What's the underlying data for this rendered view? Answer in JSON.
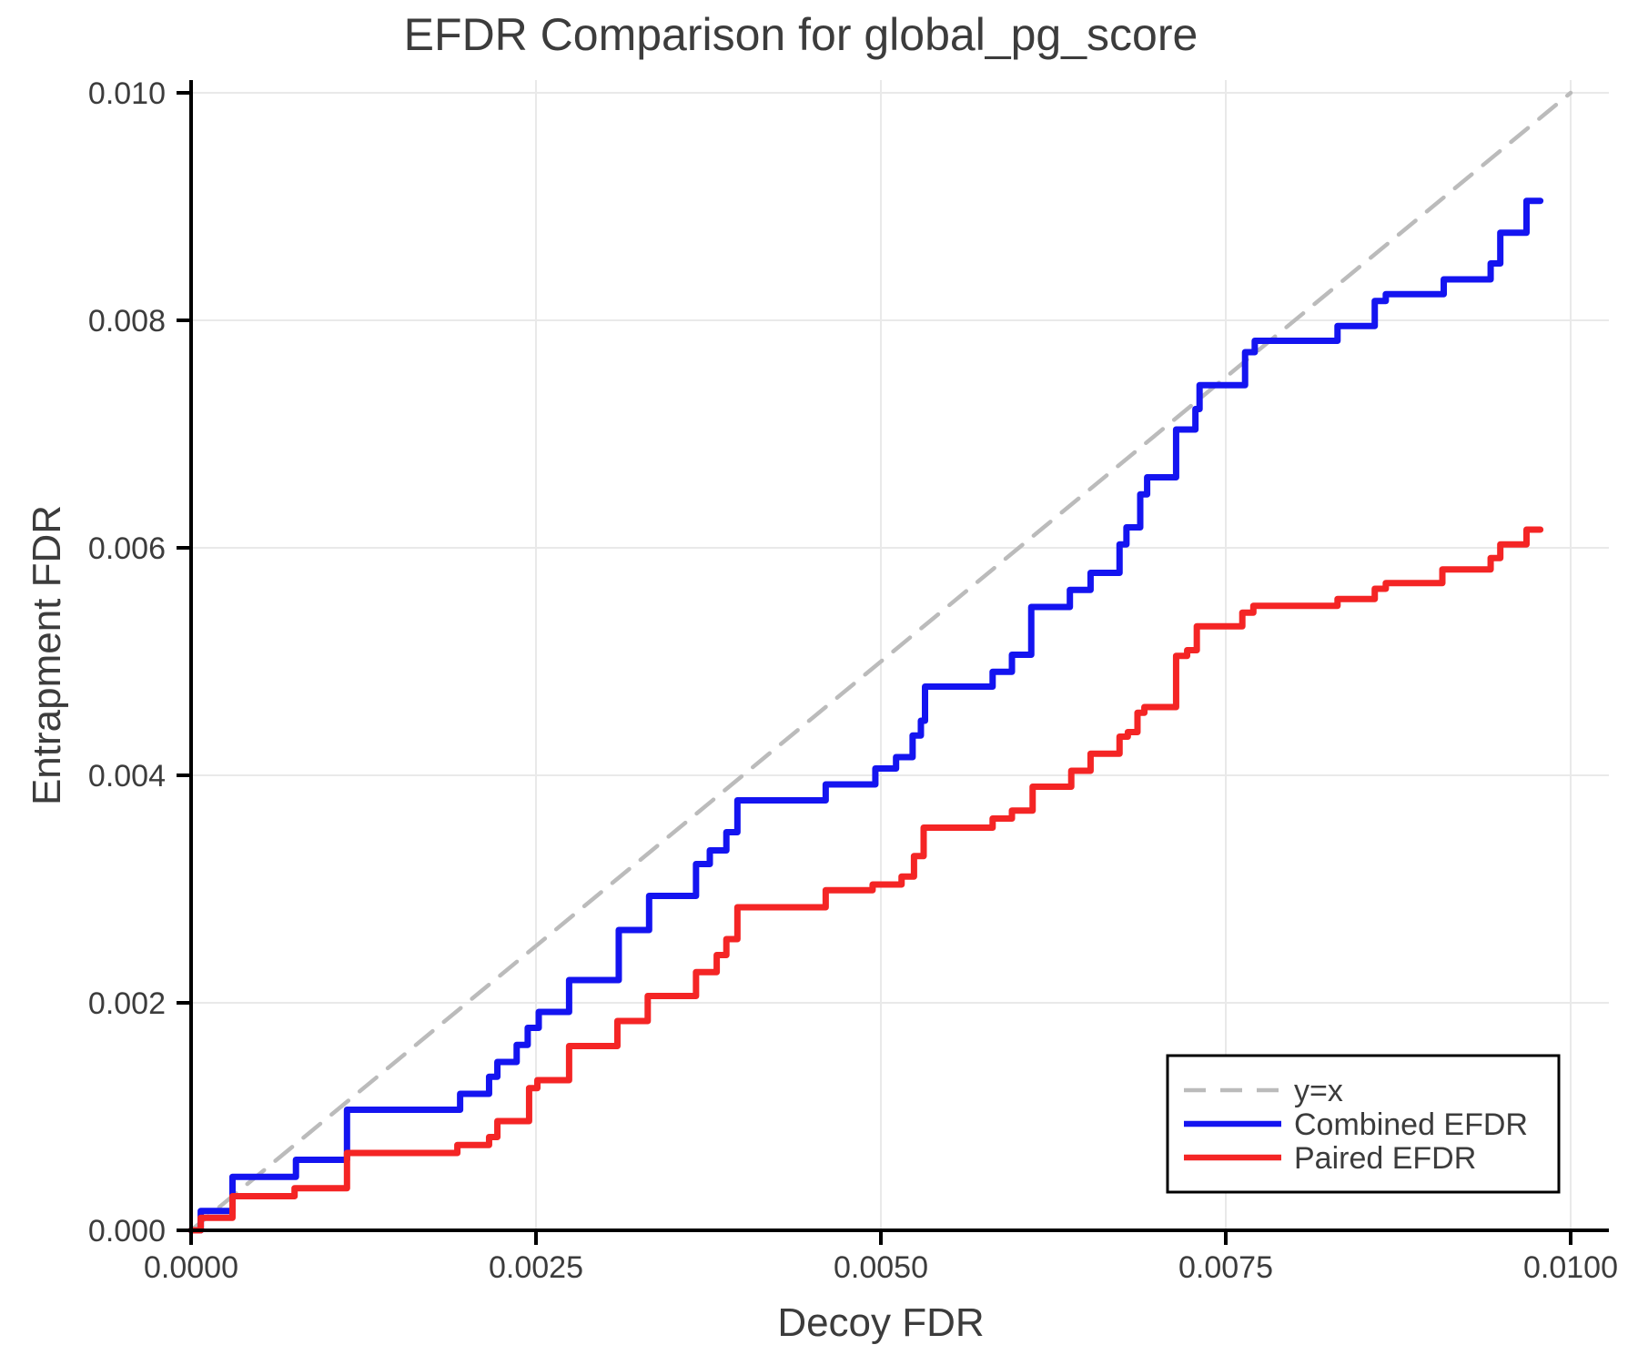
{
  "chart_data": {
    "type": "line",
    "title": "EFDR Comparison for global_pg_score",
    "xlabel": "Decoy FDR",
    "ylabel": "Entrapment FDR",
    "xlim": [
      0.0,
      0.01
    ],
    "ylim": [
      0.0,
      0.01
    ],
    "grid": true,
    "x_ticks": {
      "values": [
        0.0,
        0.0025,
        0.005,
        0.0075,
        0.01
      ],
      "labels": [
        "0.0000",
        "0.0025",
        "0.0050",
        "0.0075",
        "0.0100"
      ]
    },
    "y_ticks": {
      "values": [
        0.0,
        0.002,
        0.004,
        0.006,
        0.008,
        0.01
      ],
      "labels": [
        "0.000",
        "0.002",
        "0.004",
        "0.006",
        "0.008",
        "0.010"
      ]
    },
    "colors": {
      "combined": "#1414f0",
      "paired": "#f42525",
      "identity": "#bbbbbb",
      "grid": "#e9e9e9",
      "spine": "#000000",
      "text": "#3c3c3c"
    },
    "legend": {
      "position": "lower right",
      "entries": [
        {
          "label": "y=x",
          "color": "#bbbbbb",
          "dash": true
        },
        {
          "label": "Combined EFDR",
          "color": "#1414f0",
          "dash": false
        },
        {
          "label": "Paired EFDR",
          "color": "#f42525",
          "dash": false
        }
      ]
    },
    "series": [
      {
        "name": "y=x",
        "style": "straight",
        "dash": true,
        "color": "#bbbbbb",
        "points": [
          [
            0.0,
            0.0
          ],
          [
            0.01,
            0.01
          ]
        ]
      },
      {
        "name": "Combined EFDR",
        "style": "step",
        "dash": false,
        "color": "#1414f0",
        "points": [
          [
            0.0,
            0.0
          ],
          [
            7e-05,
            0.00017
          ],
          [
            0.0003,
            0.00047
          ],
          [
            0.00076,
            0.00062
          ],
          [
            0.00113,
            0.00106
          ],
          [
            0.00195,
            0.0012
          ],
          [
            0.00216,
            0.00135
          ],
          [
            0.00222,
            0.00148
          ],
          [
            0.00236,
            0.00163
          ],
          [
            0.00244,
            0.00178
          ],
          [
            0.00252,
            0.00192
          ],
          [
            0.00274,
            0.0022
          ],
          [
            0.0031,
            0.00264
          ],
          [
            0.00332,
            0.00294
          ],
          [
            0.00366,
            0.00322
          ],
          [
            0.00376,
            0.00334
          ],
          [
            0.00388,
            0.0035
          ],
          [
            0.00396,
            0.00378
          ],
          [
            0.0046,
            0.00392
          ],
          [
            0.00496,
            0.00406
          ],
          [
            0.00511,
            0.00416
          ],
          [
            0.00523,
            0.00435
          ],
          [
            0.00529,
            0.00448
          ],
          [
            0.00532,
            0.00478
          ],
          [
            0.00581,
            0.00491
          ],
          [
            0.00595,
            0.00506
          ],
          [
            0.00609,
            0.00548
          ],
          [
            0.00637,
            0.00563
          ],
          [
            0.00652,
            0.00578
          ],
          [
            0.00673,
            0.00603
          ],
          [
            0.00678,
            0.00618
          ],
          [
            0.00688,
            0.00647
          ],
          [
            0.00693,
            0.00662
          ],
          [
            0.00714,
            0.00704
          ],
          [
            0.00728,
            0.00722
          ],
          [
            0.00731,
            0.00743
          ],
          [
            0.00764,
            0.00772
          ],
          [
            0.00771,
            0.00782
          ],
          [
            0.00831,
            0.00795
          ],
          [
            0.00858,
            0.00817
          ],
          [
            0.00866,
            0.00823
          ],
          [
            0.00908,
            0.00836
          ],
          [
            0.00942,
            0.0085
          ],
          [
            0.00949,
            0.00877
          ],
          [
            0.00968,
            0.00905
          ],
          [
            0.00978,
            0.00905
          ]
        ]
      },
      {
        "name": "Paired EFDR",
        "style": "step",
        "dash": false,
        "color": "#f42525",
        "points": [
          [
            0.0,
            0.0
          ],
          [
            7e-05,
            0.00011
          ],
          [
            0.0003,
            0.0003
          ],
          [
            0.00075,
            0.00037
          ],
          [
            0.00113,
            0.00068
          ],
          [
            0.00193,
            0.00075
          ],
          [
            0.00216,
            0.00082
          ],
          [
            0.00222,
            0.00096
          ],
          [
            0.00245,
            0.00125
          ],
          [
            0.00251,
            0.00132
          ],
          [
            0.00274,
            0.00162
          ],
          [
            0.00309,
            0.00184
          ],
          [
            0.00331,
            0.00206
          ],
          [
            0.00366,
            0.00227
          ],
          [
            0.00381,
            0.00242
          ],
          [
            0.00388,
            0.00256
          ],
          [
            0.00396,
            0.00284
          ],
          [
            0.0046,
            0.00299
          ],
          [
            0.00494,
            0.00304
          ],
          [
            0.00515,
            0.00311
          ],
          [
            0.00524,
            0.00329
          ],
          [
            0.00531,
            0.00354
          ],
          [
            0.00581,
            0.00362
          ],
          [
            0.00595,
            0.00369
          ],
          [
            0.0061,
            0.0039
          ],
          [
            0.00638,
            0.00404
          ],
          [
            0.00652,
            0.00419
          ],
          [
            0.00673,
            0.00434
          ],
          [
            0.00679,
            0.00438
          ],
          [
            0.00686,
            0.00455
          ],
          [
            0.00691,
            0.0046
          ],
          [
            0.00714,
            0.00505
          ],
          [
            0.00722,
            0.0051
          ],
          [
            0.00729,
            0.00531
          ],
          [
            0.00762,
            0.00543
          ],
          [
            0.0077,
            0.00549
          ],
          [
            0.00831,
            0.00555
          ],
          [
            0.00858,
            0.00564
          ],
          [
            0.00866,
            0.00569
          ],
          [
            0.00907,
            0.00581
          ],
          [
            0.00942,
            0.00591
          ],
          [
            0.00949,
            0.00603
          ],
          [
            0.00968,
            0.00616
          ],
          [
            0.00978,
            0.00616
          ]
        ]
      }
    ]
  }
}
